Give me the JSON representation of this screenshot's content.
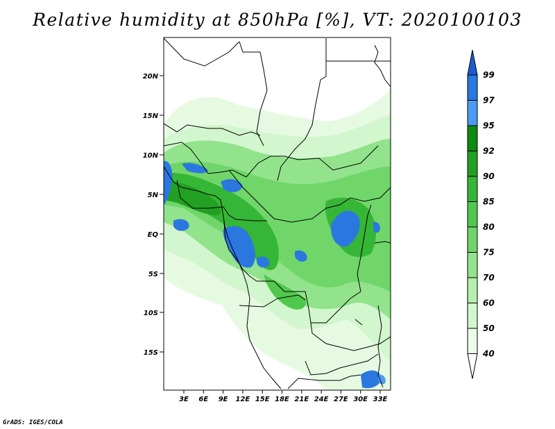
{
  "title": "Relative humidity at 850hPa [%], VT: 2020100103",
  "credit": "GrADS: IGES/COLA",
  "lat_labels": [
    "20N",
    "15N",
    "10N",
    "5N",
    "EQ",
    "5S",
    "10S",
    "15S"
  ],
  "lon_labels": [
    "3E",
    "6E",
    "9E",
    "12E",
    "15E",
    "18E",
    "21E",
    "24E",
    "27E",
    "30E",
    "33E"
  ],
  "colorbar": {
    "labels": [
      "99",
      "97",
      "95",
      "92",
      "90",
      "85",
      "80",
      "75",
      "70",
      "60",
      "50",
      "40"
    ],
    "colors": [
      "#1c5bd0",
      "#2b77e0",
      "#4d9bf0",
      "#0f8a10",
      "#22a021",
      "#36b636",
      "#4fc84d",
      "#70d66a",
      "#92e38c",
      "#b5eeae",
      "#d2f6cd",
      "#ebfce8",
      "#ffffff"
    ]
  },
  "map_colors": {
    "land_light": "#d2f6cd",
    "land_mid": "#70d66a",
    "land_dark": "#22a021",
    "wet": "#2b77e0",
    "border": "#000000"
  }
}
